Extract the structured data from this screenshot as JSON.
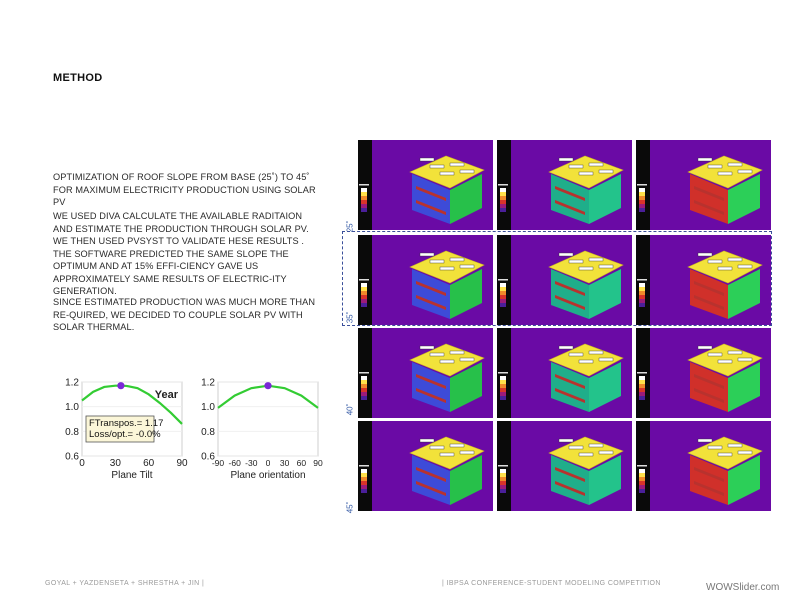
{
  "section_title": "METHOD",
  "paragraph1": "OPTIMIZATION OF ROOF SLOPE FROM BASE (25˚) TO 45˚ FOR MAXIMUM ELECTRICITY PRODUCTION USING SOLAR PV",
  "paragraph2": "WE USED DIVA CALCULATE THE AVAILABLE RADITAION AND ESTIMATE THE PRODUCTION THROUGH SOLAR PV. WE THEN USED PVSYST TO VALIDATE HESE RESULTS . THE SOFTWARE PREDICTED THE SAME SLOPE THE OPTIMUM AND AT 15% EFFI-CIENCY GAVE US APPROXIMATELY SAME RESULTS OF ELECTRIC-ITY GENERATION.",
  "paragraph3": "SINCE ESTIMATED PRODUCTION WAS MUCH MORE THAN RE-QUIRED, WE DECIDED TO COUPLE SOLAR PV WITH SOLAR THERMAL.",
  "footer_left": "GOYAL + YAZDENSETA + SHRESTHA + JIN |",
  "footer_center": "| IBPSA CONFERENCE-STUDENT MODELING COMPETITION",
  "watermark": "WOWSlider.com",
  "row_labels": [
    "25˚",
    "35˚",
    "40˚",
    "45˚"
  ],
  "colors": {
    "sky": "#6a0aa5",
    "curve": "#33cc33",
    "marker": "#7a28d6",
    "highlight": "#3a4f9a"
  },
  "chart_data": [
    {
      "type": "line",
      "title": "Year",
      "xlabel": "Plane Tilt",
      "ylabel": "",
      "xlim": [
        0,
        90
      ],
      "ylim": [
        0.6,
        1.2
      ],
      "xticks": [
        "0",
        "30",
        "60",
        "90"
      ],
      "yticks": [
        "0.6",
        "0.8",
        "1.0",
        "1.2"
      ],
      "x": [
        0,
        10,
        20,
        30,
        35,
        40,
        50,
        60,
        70,
        80,
        90
      ],
      "y": [
        1.05,
        1.12,
        1.16,
        1.17,
        1.17,
        1.168,
        1.15,
        1.1,
        1.03,
        0.95,
        0.86
      ],
      "marker": {
        "x": 35,
        "y": 1.17
      },
      "annotation": [
        "FTranspos.= 1.17",
        "Loss/opt.= -0.0%"
      ]
    },
    {
      "type": "line",
      "title": "",
      "xlabel": "Plane orientation",
      "ylabel": "",
      "xlim": [
        -90,
        90
      ],
      "ylim": [
        0.6,
        1.2
      ],
      "xticks": [
        "-90",
        "-60",
        "-30",
        "0",
        "30",
        "60",
        "90"
      ],
      "yticks": [
        "0.6",
        "0.8",
        "1.0",
        "1.2"
      ],
      "x": [
        -90,
        -60,
        -30,
        0,
        30,
        60,
        90
      ],
      "y": [
        0.99,
        1.09,
        1.15,
        1.17,
        1.15,
        1.09,
        0.99
      ],
      "marker": {
        "x": 0,
        "y": 1.17
      }
    }
  ]
}
